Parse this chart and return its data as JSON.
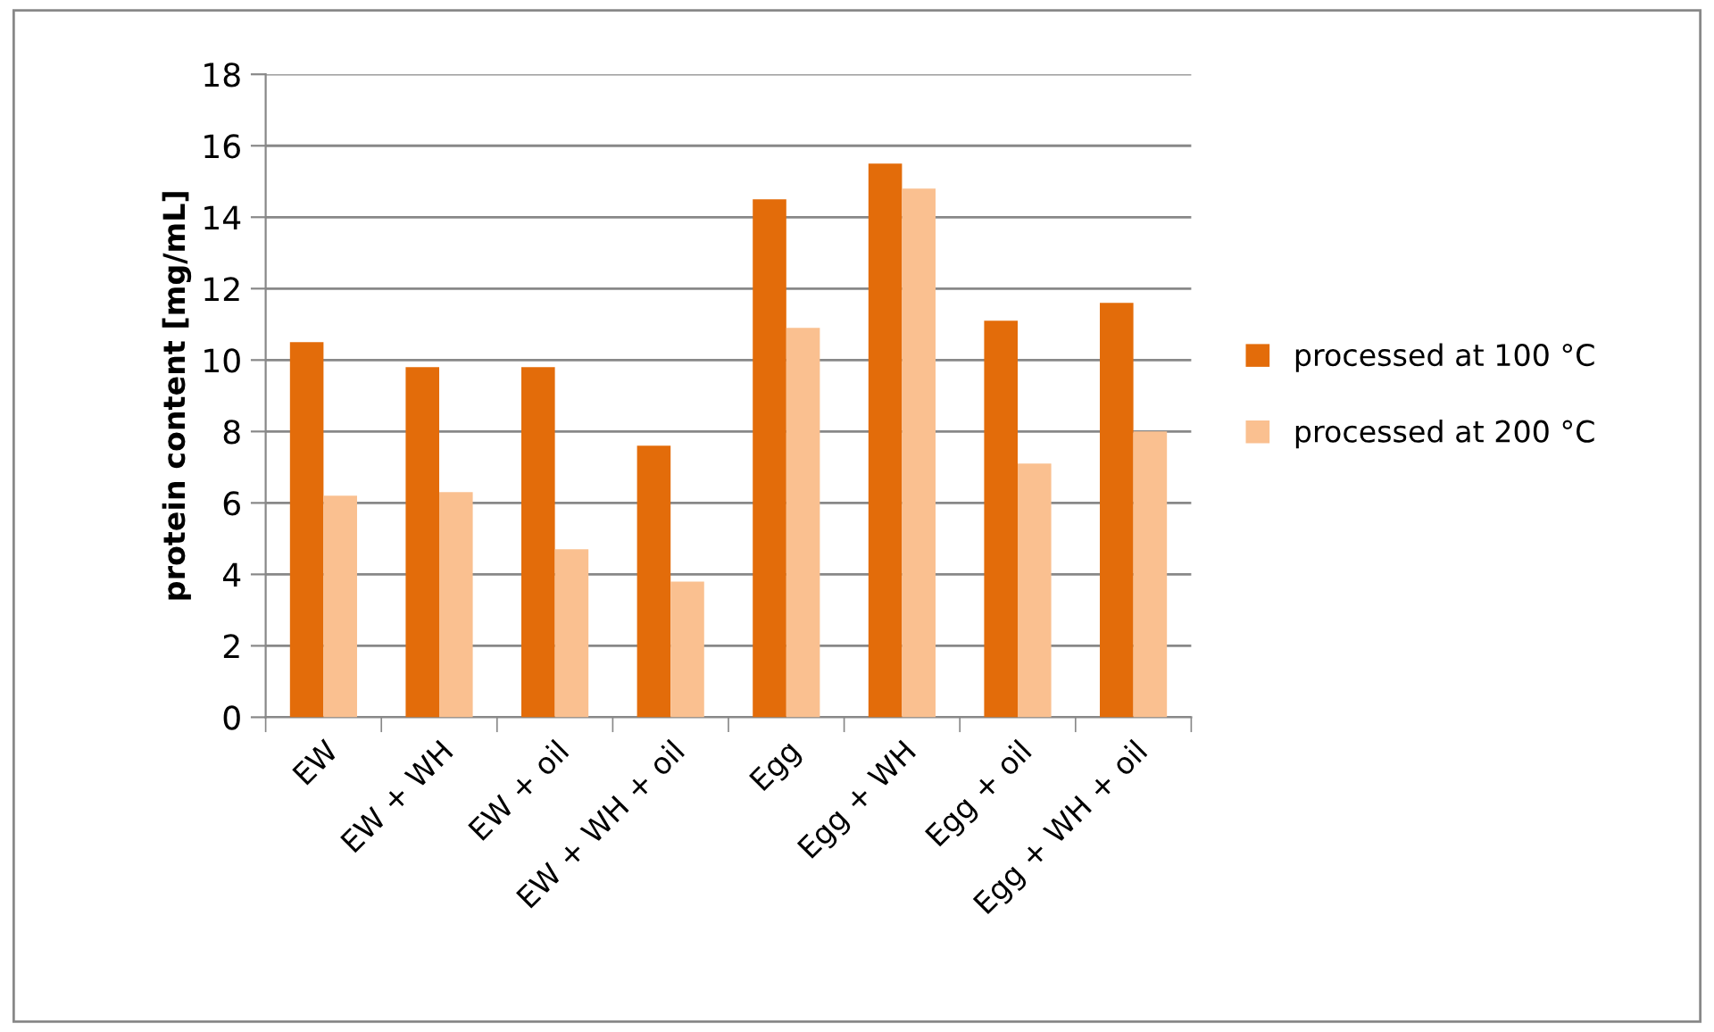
{
  "chart_data": {
    "type": "bar",
    "ylabel": "protein content [mg/mL]",
    "categories": [
      "EW",
      "EW + WH",
      "EW + oil",
      "EW + WH + oil",
      "Egg",
      "Egg + WH",
      "Egg + oil",
      "Egg + WH + oil"
    ],
    "series": [
      {
        "name": "processed at 100 °C",
        "color": "#e36c0a",
        "values": [
          10.5,
          9.8,
          9.8,
          7.6,
          14.5,
          15.5,
          11.1,
          11.6
        ]
      },
      {
        "name": "processed at 200 °C",
        "color": "#fac090",
        "values": [
          6.2,
          6.3,
          4.7,
          3.8,
          10.9,
          14.8,
          7.1,
          8.0
        ]
      }
    ],
    "ylim": [
      0,
      18
    ],
    "yticks": [
      0,
      2,
      4,
      6,
      8,
      10,
      12,
      14,
      16,
      18
    ],
    "grid": "y",
    "legend": "right"
  }
}
